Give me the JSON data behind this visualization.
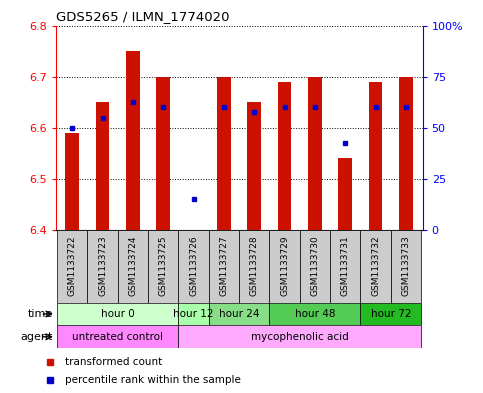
{
  "title": "GDS5265 / ILMN_1774020",
  "samples": [
    "GSM1133722",
    "GSM1133723",
    "GSM1133724",
    "GSM1133725",
    "GSM1133726",
    "GSM1133727",
    "GSM1133728",
    "GSM1133729",
    "GSM1133730",
    "GSM1133731",
    "GSM1133732",
    "GSM1133733"
  ],
  "red_values": [
    6.59,
    6.65,
    6.75,
    6.7,
    6.4,
    6.7,
    6.65,
    6.69,
    6.7,
    6.54,
    6.69,
    6.7
  ],
  "blue_values_y": [
    6.6,
    6.62,
    6.65,
    6.64,
    6.46,
    6.64,
    6.63,
    6.64,
    6.64,
    6.57,
    6.64,
    6.64
  ],
  "ymin": 6.4,
  "ymax": 6.8,
  "y2min": 0,
  "y2max": 100,
  "yticks": [
    6.4,
    6.5,
    6.6,
    6.7,
    6.8
  ],
  "y2ticks": [
    0,
    25,
    50,
    75,
    100
  ],
  "y2ticklabels": [
    "0",
    "25",
    "50",
    "75",
    "100%"
  ],
  "time_groups": [
    {
      "label": "hour 0",
      "start": 0,
      "end": 4,
      "color": "#ccffcc"
    },
    {
      "label": "hour 12",
      "start": 4,
      "end": 5,
      "color": "#aaffaa"
    },
    {
      "label": "hour 24",
      "start": 5,
      "end": 7,
      "color": "#88dd88"
    },
    {
      "label": "hour 48",
      "start": 7,
      "end": 10,
      "color": "#55cc55"
    },
    {
      "label": "hour 72",
      "start": 10,
      "end": 12,
      "color": "#22bb22"
    }
  ],
  "agent_groups": [
    {
      "label": "untreated control",
      "start": 0,
      "end": 4,
      "color": "#ff88ff"
    },
    {
      "label": "mycophenolic acid",
      "start": 4,
      "end": 12,
      "color": "#ffaaff"
    }
  ],
  "bar_color": "#cc1100",
  "dot_color": "#0000cc",
  "base": 6.4,
  "legend_red": "transformed count",
  "legend_blue": "percentile rank within the sample",
  "sample_box_color": "#cccccc",
  "plot_bg": "#ffffff"
}
